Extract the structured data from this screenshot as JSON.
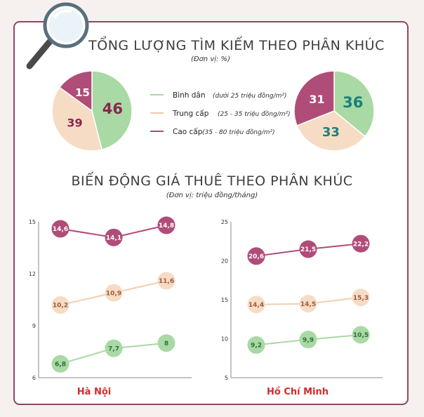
{
  "titles": {
    "search": "TỔNG LƯỢNG TÌM KIẾM THEO PHÂN KHÚC",
    "search_unit": "(Đơn vị: %)",
    "rent": "BIẾN ĐỘNG GIÁ THUÊ THEO PHÂN KHÚC",
    "rent_unit": "(Đơn vị: triệu đồng/tháng)"
  },
  "colors": {
    "binh_dan": "#a9d9a4",
    "trung_cap": "#f6dcc5",
    "cao_cap": "#b04c78",
    "binh_dan_text": "#2f8f3e",
    "trung_cap_text": "#a05a3a",
    "cao_cap_text": "#8a2550",
    "hcm_teal": "#1a7f7a",
    "frame": "#8b4866",
    "city_red": "#d42b2b"
  },
  "icons": {
    "decor": "magnifier-icon"
  },
  "legend": [
    {
      "name": "Bình dân",
      "note": "(dưới 25 triệu đồng/m²)",
      "color_key": "binh_dan"
    },
    {
      "name": "Trung cấp",
      "note": "(25 - 35 triệu đồng/m²)",
      "color_key": "trung_cap"
    },
    {
      "name": "Cao cấp",
      "note": "(35 - 80 triệu đồng/m²)",
      "color_key": "cao_cap"
    }
  ],
  "chart_data": [
    {
      "type": "pie",
      "id": "pie-hanoi",
      "categories": [
        "Bình dân",
        "Trung cấp",
        "Cao cấp"
      ],
      "values": [
        46,
        39,
        15
      ],
      "labels": [
        "46",
        "39",
        "15"
      ]
    },
    {
      "type": "pie",
      "id": "pie-hcm",
      "categories": [
        "Bình dân",
        "Trung cấp",
        "Cao cấp"
      ],
      "values": [
        36,
        33,
        31
      ],
      "labels": [
        "36",
        "33",
        "31"
      ]
    },
    {
      "type": "line",
      "id": "line-hanoi",
      "city": "Hà Nội",
      "ylim": [
        6,
        15
      ],
      "yticks": [
        "6",
        "9",
        "12",
        "15"
      ],
      "x": [
        1,
        2,
        3
      ],
      "series": [
        {
          "color_key": "cao_cap",
          "values": [
            14.6,
            14.1,
            14.8
          ],
          "labels": [
            "14,6",
            "14,1",
            "14,8"
          ]
        },
        {
          "color_key": "trung_cap",
          "values": [
            10.2,
            10.9,
            11.6
          ],
          "labels": [
            "10,2",
            "10,9",
            "11,6"
          ]
        },
        {
          "color_key": "binh_dan",
          "values": [
            6.8,
            7.7,
            8
          ],
          "labels": [
            "6,8",
            "7,7",
            "8"
          ]
        }
      ]
    },
    {
      "type": "line",
      "id": "line-hcm",
      "city": "Hồ Chí Minh",
      "ylim": [
        5,
        25
      ],
      "yticks": [
        "5",
        "10",
        "15",
        "20",
        "25"
      ],
      "x": [
        1,
        2,
        3
      ],
      "series": [
        {
          "color_key": "cao_cap",
          "values": [
            20.6,
            21.5,
            22.2
          ],
          "labels": [
            "20,6",
            "21,5",
            "22,2"
          ]
        },
        {
          "color_key": "trung_cap",
          "values": [
            14.4,
            14.5,
            15.3
          ],
          "labels": [
            "14,4",
            "14,5",
            "15,3"
          ]
        },
        {
          "color_key": "binh_dan",
          "values": [
            9.2,
            9.9,
            10.5
          ],
          "labels": [
            "9,2",
            "9,9",
            "10,5"
          ]
        }
      ]
    }
  ]
}
